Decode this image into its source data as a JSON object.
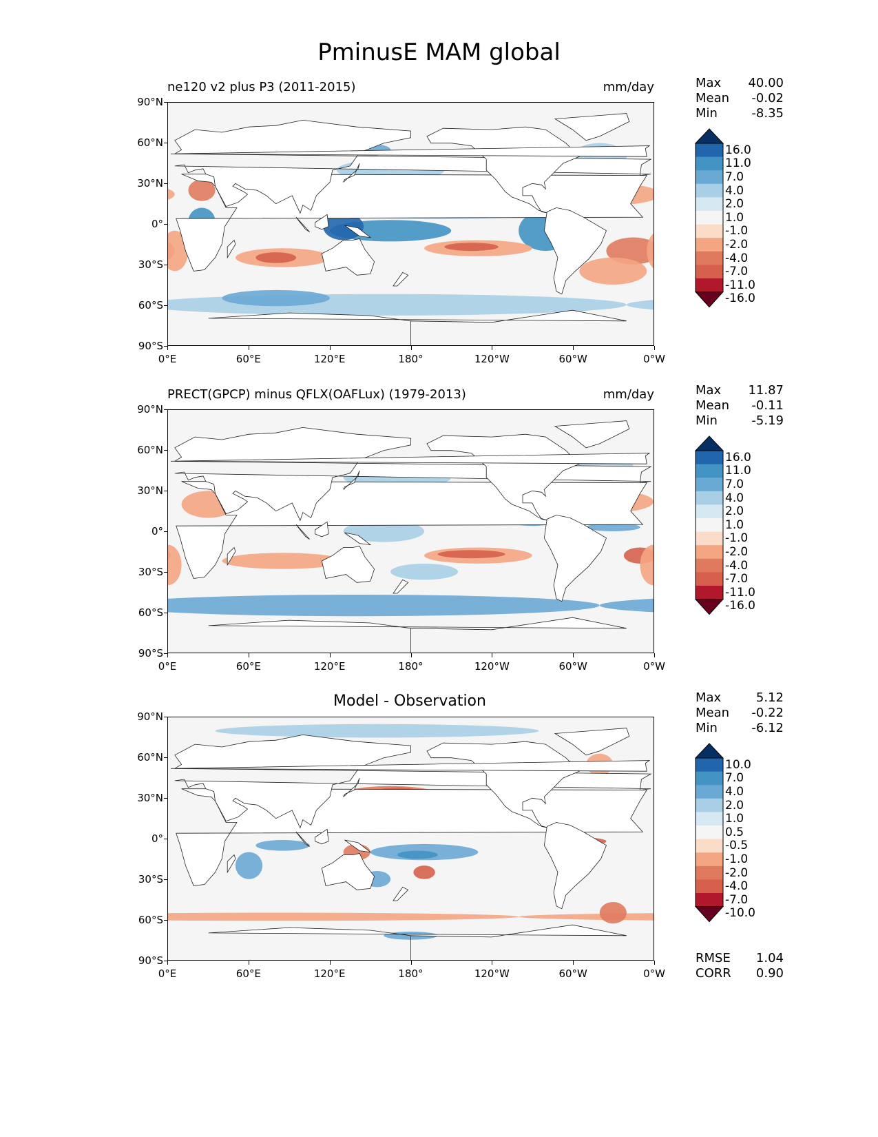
{
  "title": "PminusE MAM global",
  "panels": [
    {
      "subtitle": "ne120 v2 plus P3 (2011-2015)",
      "center_title": "",
      "units": "mm/day",
      "stats": [
        {
          "label": "Max",
          "value": "40.00"
        },
        {
          "label": "Mean",
          "value": "-0.02"
        },
        {
          "label": "Min",
          "value": "-8.35"
        }
      ],
      "colorbar_labels": [
        "16.0",
        "11.0",
        "7.0",
        "4.0",
        "2.0",
        "1.0",
        "-1.0",
        "-2.0",
        "-4.0",
        "-7.0",
        "-11.0",
        "-16.0"
      ],
      "footer_stats": []
    },
    {
      "subtitle": "PRECT(GPCP) minus QFLX(OAFLux) (1979-2013)",
      "center_title": "",
      "units": "mm/day",
      "stats": [
        {
          "label": "Max",
          "value": "11.87"
        },
        {
          "label": "Mean",
          "value": "-0.11"
        },
        {
          "label": "Min",
          "value": "-5.19"
        }
      ],
      "colorbar_labels": [
        "16.0",
        "11.0",
        "7.0",
        "4.0",
        "2.0",
        "1.0",
        "-1.0",
        "-2.0",
        "-4.0",
        "-7.0",
        "-11.0",
        "-16.0"
      ],
      "footer_stats": []
    },
    {
      "subtitle": "",
      "center_title": "Model - Observation",
      "units": "",
      "stats": [
        {
          "label": "Max",
          "value": "5.12"
        },
        {
          "label": "Mean",
          "value": "-0.22"
        },
        {
          "label": "Min",
          "value": "-6.12"
        }
      ],
      "colorbar_labels": [
        "10.0",
        "7.0",
        "4.0",
        "2.0",
        "1.0",
        "0.5",
        "-0.5",
        "-1.0",
        "-2.0",
        "-4.0",
        "-7.0",
        "-10.0"
      ],
      "footer_stats": [
        {
          "label": "RMSE",
          "value": "1.04"
        },
        {
          "label": "CORR",
          "value": "0.90"
        }
      ]
    }
  ],
  "y_ticks": [
    "90°N",
    "60°N",
    "30°N",
    "0°",
    "30°S",
    "60°S",
    "90°S"
  ],
  "x_ticks": [
    "0°E",
    "60°E",
    "120°E",
    "180°",
    "120°W",
    "60°W",
    "0°W"
  ],
  "colors": {
    "colorbar": [
      "#053061",
      "#2166ac",
      "#4393c3",
      "#6aa9d4",
      "#a8cfe6",
      "#d6e8f2",
      "#f5f5f5",
      "#fbdcc8",
      "#f4a582",
      "#e07a5f",
      "#d6604d",
      "#b2182b",
      "#67001f"
    ],
    "land": "#ffffff",
    "ocean_neutral": "#f5f5f5"
  }
}
